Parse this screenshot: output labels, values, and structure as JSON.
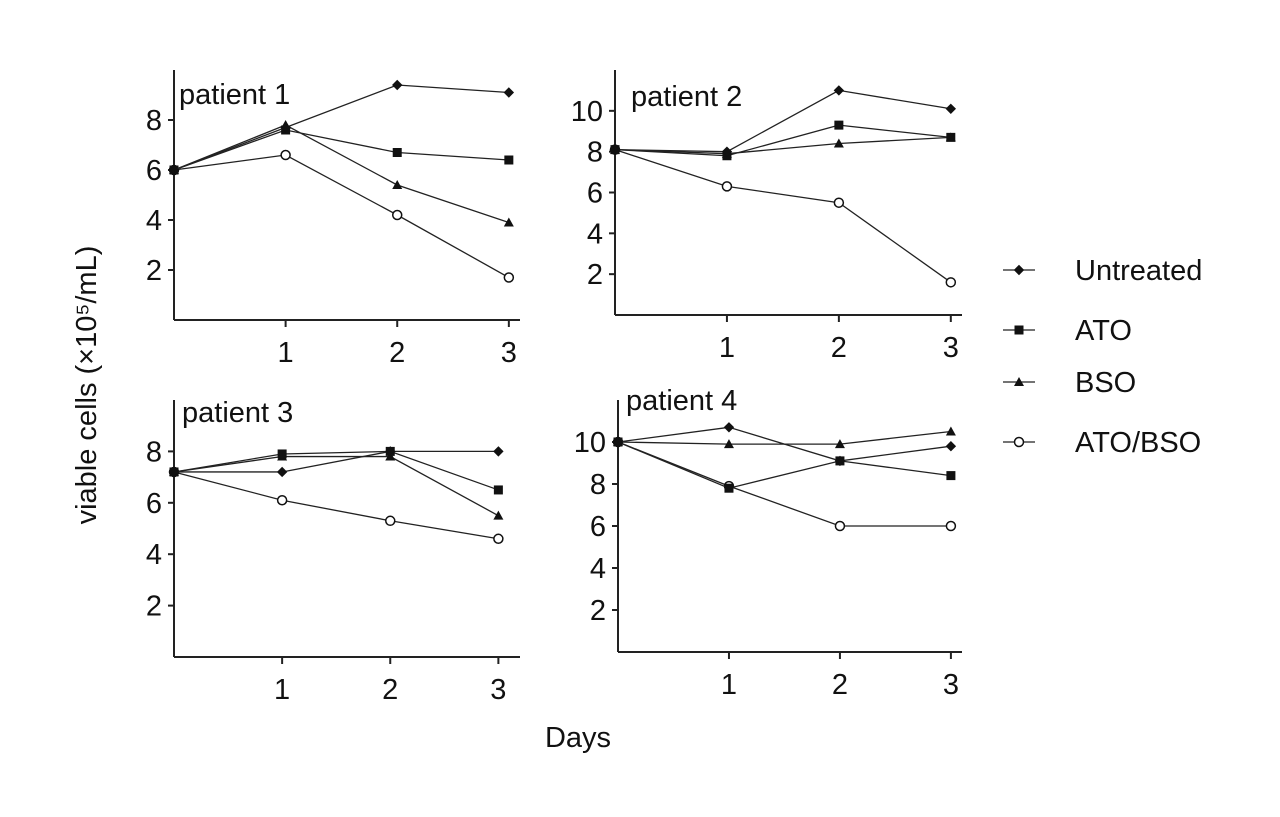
{
  "chart_data": {
    "type": "line",
    "shared_xlabel": "Days",
    "shared_ylabel": "viable cells (×10⁵/mL)",
    "legend": {
      "position": "right",
      "entries": [
        {
          "name": "Untreated",
          "marker": "diamond"
        },
        {
          "name": "ATO",
          "marker": "square"
        },
        {
          "name": "BSO",
          "marker": "triangle"
        },
        {
          "name": "ATO/BSO",
          "marker": "circle-open"
        }
      ]
    },
    "panels": [
      {
        "title": "patient 1",
        "x": [
          0,
          1,
          2,
          3
        ],
        "xticks": [
          1,
          2,
          3
        ],
        "xlim": [
          0,
          3.1
        ],
        "ylim": [
          0,
          10
        ],
        "yticks": [
          2,
          4,
          6,
          8
        ],
        "series": [
          {
            "name": "Untreated",
            "values": [
              6.0,
              7.7,
              9.4,
              9.1
            ]
          },
          {
            "name": "ATO",
            "values": [
              6.0,
              7.6,
              6.7,
              6.4
            ]
          },
          {
            "name": "BSO",
            "values": [
              6.0,
              7.8,
              5.4,
              3.9
            ]
          },
          {
            "name": "ATO/BSO",
            "values": [
              6.0,
              6.6,
              4.2,
              1.7
            ]
          }
        ]
      },
      {
        "title": "patient 2",
        "x": [
          0,
          1,
          2,
          3
        ],
        "xticks": [
          1,
          2,
          3
        ],
        "xlim": [
          0,
          3.1
        ],
        "ylim": [
          0,
          12
        ],
        "yticks": [
          2,
          4,
          6,
          8,
          10
        ],
        "series": [
          {
            "name": "Untreated",
            "values": [
              8.1,
              8.0,
              11.0,
              10.1
            ]
          },
          {
            "name": "ATO",
            "values": [
              8.1,
              7.8,
              9.3,
              8.7
            ]
          },
          {
            "name": "BSO",
            "values": [
              8.1,
              7.9,
              8.4,
              8.7
            ]
          },
          {
            "name": "ATO/BSO",
            "values": [
              8.1,
              6.3,
              5.5,
              1.6
            ]
          }
        ]
      },
      {
        "title": "patient 3",
        "x": [
          0,
          1,
          2,
          3
        ],
        "xticks": [
          1,
          2,
          3
        ],
        "xlim": [
          0,
          3.2
        ],
        "ylim": [
          0,
          10
        ],
        "yticks": [
          2,
          4,
          6,
          8
        ],
        "series": [
          {
            "name": "Untreated",
            "values": [
              7.2,
              7.2,
              8.0,
              8.0
            ]
          },
          {
            "name": "ATO",
            "values": [
              7.2,
              7.9,
              8.0,
              6.5
            ]
          },
          {
            "name": "BSO",
            "values": [
              7.2,
              7.8,
              7.8,
              5.5
            ]
          },
          {
            "name": "ATO/BSO",
            "values": [
              7.2,
              6.1,
              5.3,
              4.6
            ]
          }
        ]
      },
      {
        "title": "patient 4",
        "x": [
          0,
          1,
          2,
          3
        ],
        "xticks": [
          1,
          2,
          3
        ],
        "xlim": [
          0,
          3.1
        ],
        "ylim": [
          0,
          12
        ],
        "yticks": [
          2,
          4,
          6,
          8,
          10
        ],
        "series": [
          {
            "name": "Untreated",
            "values": [
              10.0,
              10.7,
              9.1,
              9.8
            ]
          },
          {
            "name": "ATO",
            "values": [
              10.0,
              7.8,
              9.1,
              8.4
            ]
          },
          {
            "name": "BSO",
            "values": [
              10.0,
              9.9,
              9.9,
              10.5
            ]
          },
          {
            "name": "ATO/BSO",
            "values": [
              10.0,
              7.9,
              6.0,
              6.0
            ]
          }
        ]
      }
    ]
  }
}
